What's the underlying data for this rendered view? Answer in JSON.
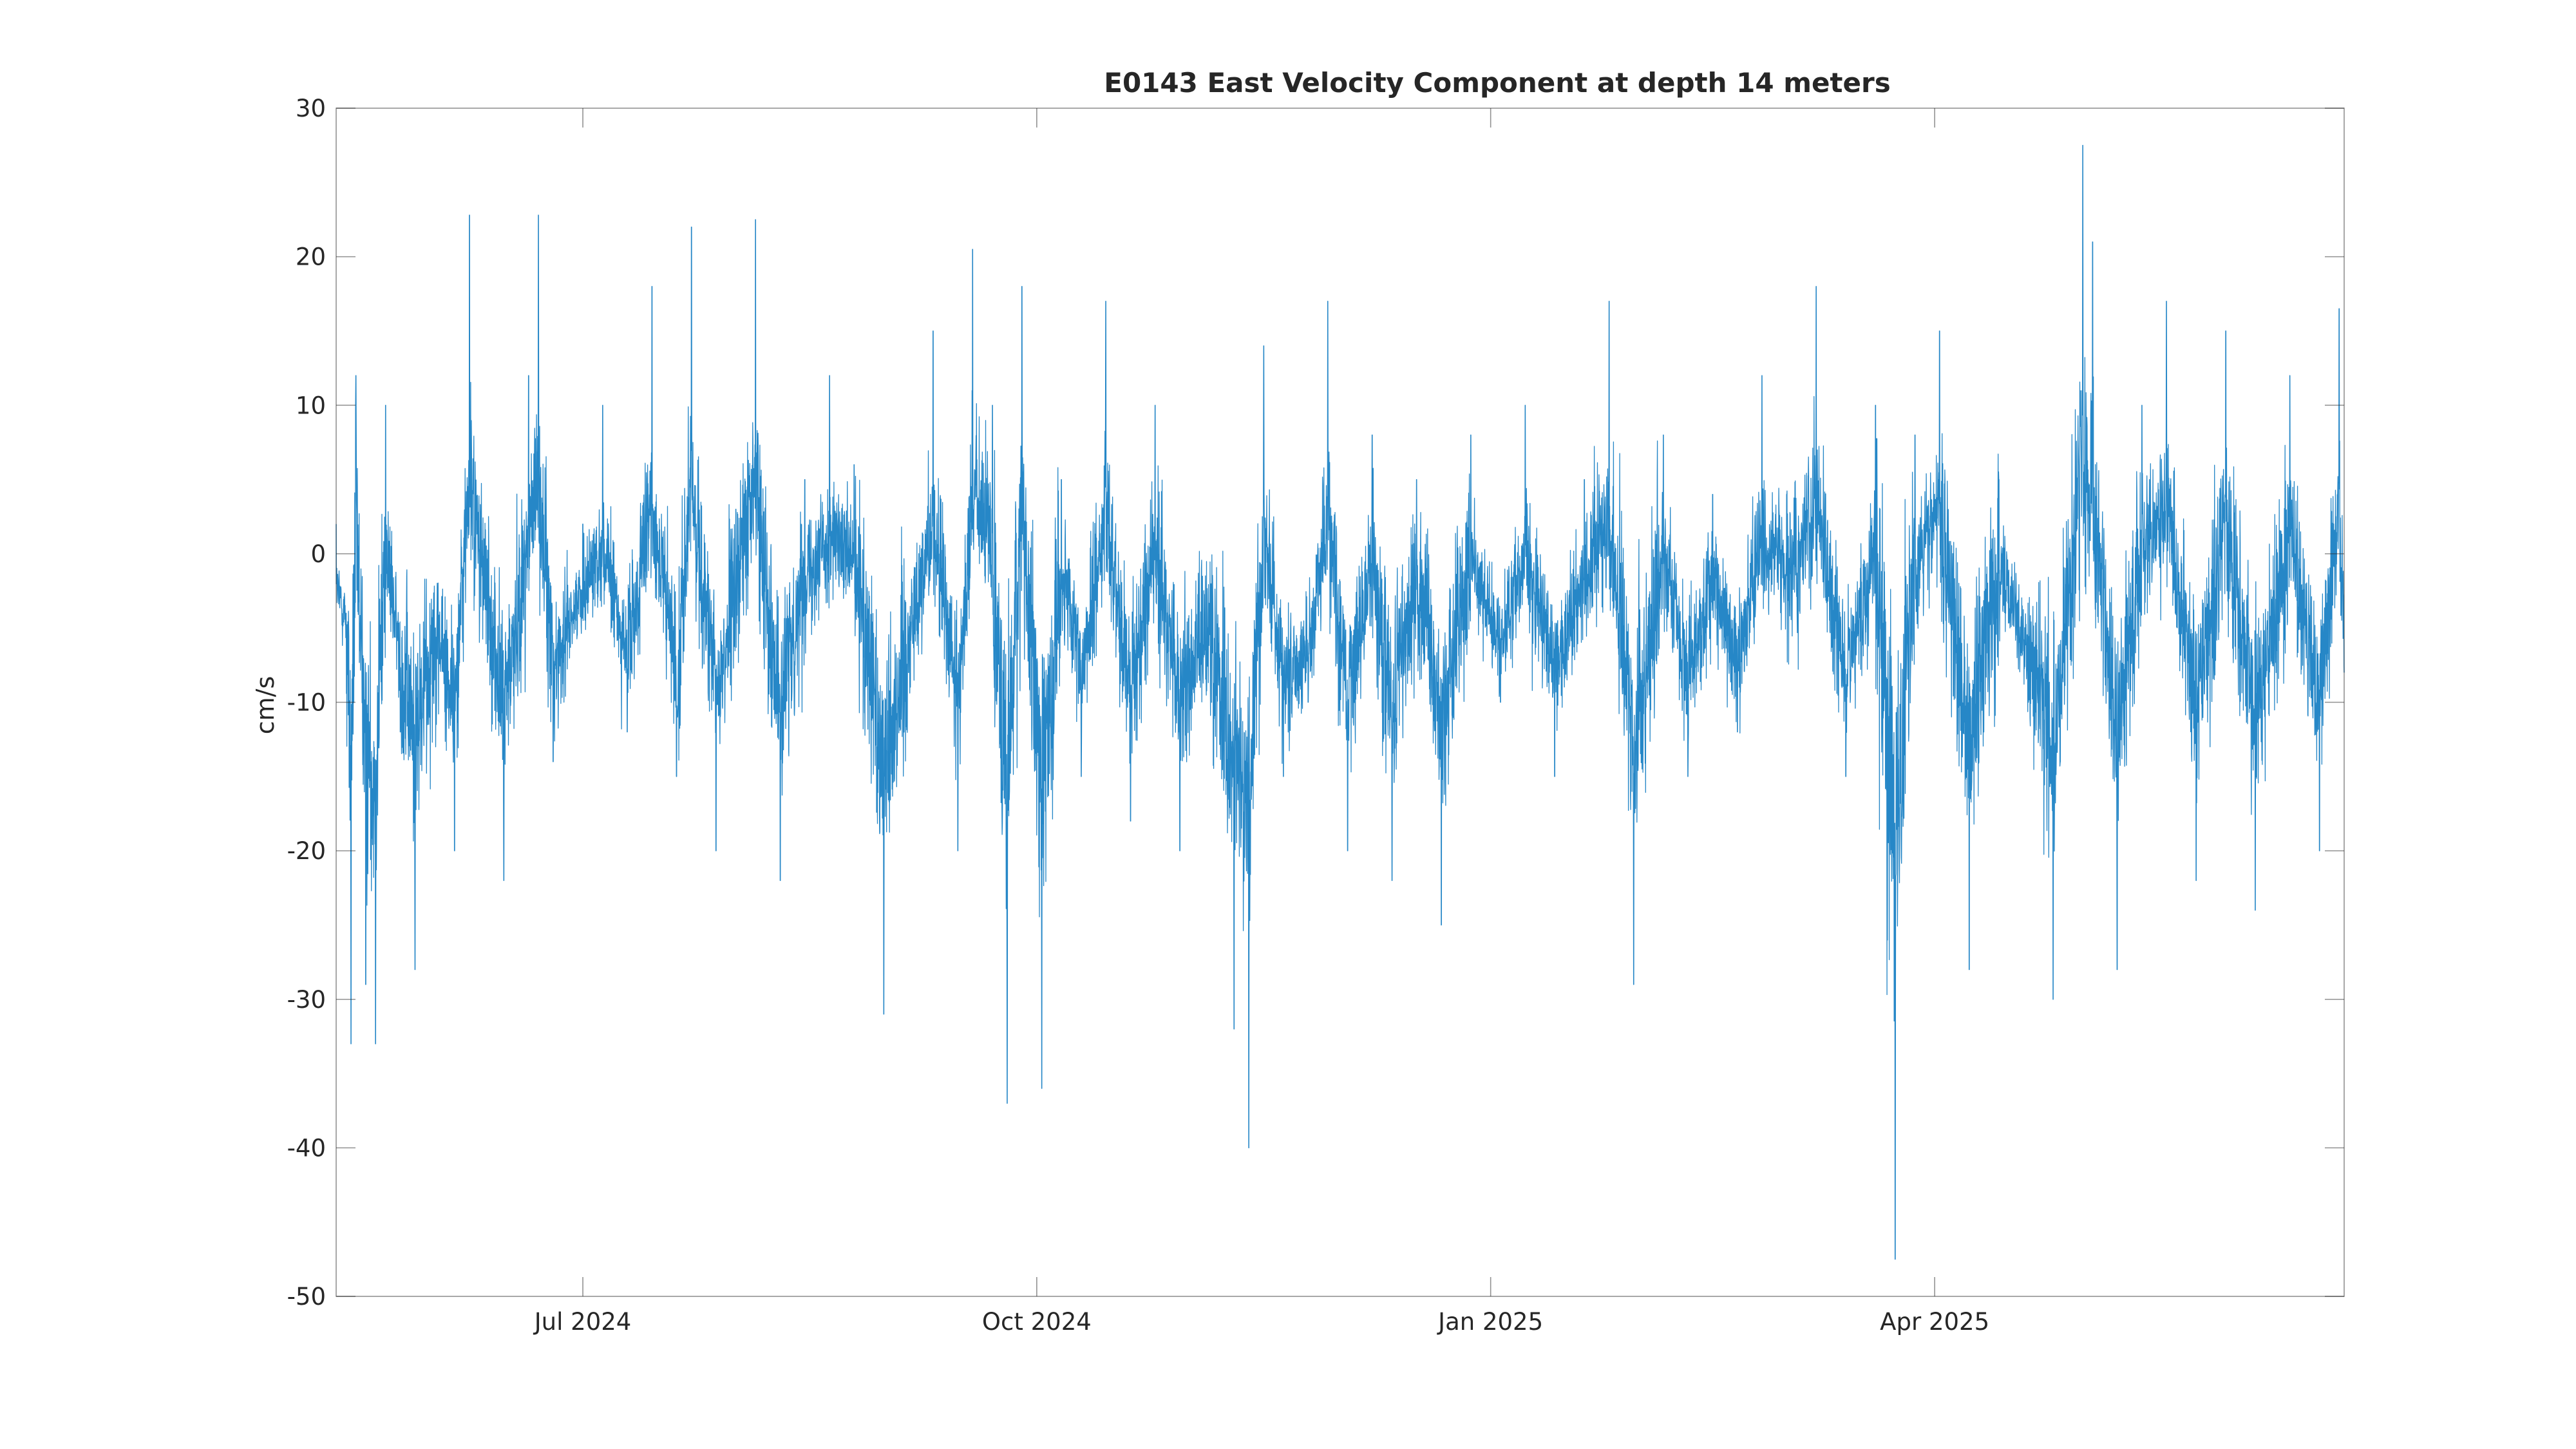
{
  "chart_data": {
    "type": "line",
    "title": "E0143 East Velocity Component at depth 14 meters",
    "xlabel": "",
    "ylabel": "cm/s",
    "ylim": [
      -50,
      30
    ],
    "xlim": [
      "2024-05-12",
      "2025-06-23"
    ],
    "yticks": [
      30,
      20,
      10,
      0,
      -10,
      -20,
      -30,
      -40,
      -50
    ],
    "xticks": [
      {
        "date": "2024-07-01",
        "label": "Jul 2024"
      },
      {
        "date": "2024-10-01",
        "label": "Oct 2024"
      },
      {
        "date": "2025-01-01",
        "label": "Jan 2025"
      },
      {
        "date": "2025-04-01",
        "label": "Apr 2025"
      }
    ],
    "grid": false,
    "box": true,
    "series": [
      {
        "color": "#0072BD",
        "sampling": "hourly",
        "data": [
          [
            "2024-05-12",
            2
          ],
          [
            "2024-05-14",
            -4
          ],
          [
            "2024-05-15",
            -33
          ],
          [
            "2024-05-16",
            12
          ],
          [
            "2024-05-18",
            -29
          ],
          [
            "2024-05-20",
            -33
          ],
          [
            "2024-05-22",
            10
          ],
          [
            "2024-05-25",
            -12
          ],
          [
            "2024-05-28",
            -28
          ],
          [
            "2024-06-01",
            -5
          ],
          [
            "2024-06-05",
            -20
          ],
          [
            "2024-06-08",
            22.8
          ],
          [
            "2024-06-12",
            -3
          ],
          [
            "2024-06-15",
            -22
          ],
          [
            "2024-06-20",
            12
          ],
          [
            "2024-06-22",
            22.8
          ],
          [
            "2024-06-25",
            -14
          ],
          [
            "2024-06-28",
            -5
          ],
          [
            "2024-07-01",
            2
          ],
          [
            "2024-07-05",
            10
          ],
          [
            "2024-07-10",
            -12
          ],
          [
            "2024-07-15",
            18
          ],
          [
            "2024-07-20",
            -15
          ],
          [
            "2024-07-23",
            22
          ],
          [
            "2024-07-28",
            -20
          ],
          [
            "2024-08-01",
            3
          ],
          [
            "2024-08-05",
            22.5
          ],
          [
            "2024-08-10",
            -22
          ],
          [
            "2024-08-15",
            5
          ],
          [
            "2024-08-20",
            12
          ],
          [
            "2024-08-25",
            6
          ],
          [
            "2024-08-31",
            -31
          ],
          [
            "2024-09-05",
            -8
          ],
          [
            "2024-09-10",
            15
          ],
          [
            "2024-09-15",
            -20
          ],
          [
            "2024-09-18",
            20.5
          ],
          [
            "2024-09-22",
            10
          ],
          [
            "2024-09-25",
            -37
          ],
          [
            "2024-09-28",
            18
          ],
          [
            "2024-10-02",
            -36
          ],
          [
            "2024-10-06",
            5
          ],
          [
            "2024-10-10",
            -15
          ],
          [
            "2024-10-15",
            17
          ],
          [
            "2024-10-20",
            -18
          ],
          [
            "2024-10-25",
            10
          ],
          [
            "2024-10-30",
            -20
          ],
          [
            "2024-11-05",
            -5
          ],
          [
            "2024-11-10",
            -32
          ],
          [
            "2024-11-13",
            -40
          ],
          [
            "2024-11-16",
            14
          ],
          [
            "2024-11-20",
            -15
          ],
          [
            "2024-11-25",
            -10
          ],
          [
            "2024-11-29",
            17
          ],
          [
            "2024-12-03",
            -20
          ],
          [
            "2024-12-08",
            8
          ],
          [
            "2024-12-12",
            -22
          ],
          [
            "2024-12-17",
            5
          ],
          [
            "2024-12-22",
            -25
          ],
          [
            "2024-12-28",
            8
          ],
          [
            "2025-01-03",
            -10
          ],
          [
            "2025-01-08",
            10
          ],
          [
            "2025-01-14",
            -15
          ],
          [
            "2025-01-20",
            5
          ],
          [
            "2025-01-25",
            17
          ],
          [
            "2025-01-30",
            -29
          ],
          [
            "2025-02-05",
            8
          ],
          [
            "2025-02-10",
            -15
          ],
          [
            "2025-02-15",
            4
          ],
          [
            "2025-02-20",
            -12
          ],
          [
            "2025-02-25",
            12
          ],
          [
            "2025-03-02",
            4
          ],
          [
            "2025-03-08",
            18
          ],
          [
            "2025-03-14",
            -15
          ],
          [
            "2025-03-20",
            10
          ],
          [
            "2025-03-24",
            -47.5
          ],
          [
            "2025-03-28",
            8
          ],
          [
            "2025-04-02",
            15
          ],
          [
            "2025-04-08",
            -28
          ],
          [
            "2025-04-14",
            5
          ],
          [
            "2025-04-20",
            -10
          ],
          [
            "2025-04-25",
            -30
          ],
          [
            "2025-05-01",
            27.5
          ],
          [
            "2025-05-03",
            21
          ],
          [
            "2025-05-08",
            -28
          ],
          [
            "2025-05-13",
            10
          ],
          [
            "2025-05-18",
            17
          ],
          [
            "2025-05-24",
            -22
          ],
          [
            "2025-05-30",
            15
          ],
          [
            "2025-06-05",
            -24
          ],
          [
            "2025-06-12",
            12
          ],
          [
            "2025-06-18",
            -20
          ],
          [
            "2025-06-22",
            16.5
          ],
          [
            "2025-06-23",
            -8
          ]
        ]
      }
    ]
  }
}
